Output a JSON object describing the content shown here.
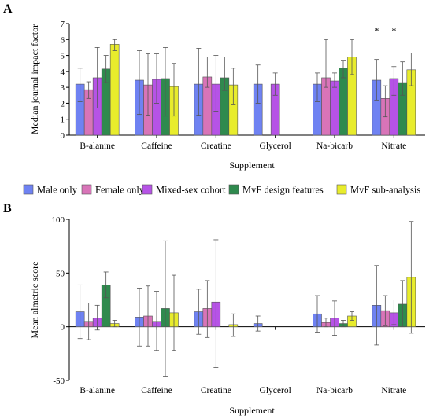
{
  "figure": {
    "panel_a_label": "A",
    "panel_b_label": "B",
    "legend": {
      "entries": [
        {
          "label": "Male only",
          "color": "#6f82f2"
        },
        {
          "label": "Female only",
          "color": "#d874b8"
        },
        {
          "label": "Mixed-sex cohort",
          "color": "#b653e6"
        },
        {
          "label": "MvF design features",
          "color": "#2f8a4e"
        },
        {
          "label": "MvF sub-analysis",
          "color": "#e8ec2c"
        }
      ]
    }
  },
  "chart_data": [
    {
      "type": "bar",
      "panel": "A",
      "xlabel": "Supplement",
      "ylabel": "Median journal impact factor",
      "ylim": [
        0,
        7
      ],
      "yticks": [
        "0",
        "1",
        "2",
        "3",
        "4",
        "5",
        "6",
        "7"
      ],
      "categories": [
        "B-alanine",
        "Caffeine",
        "Creatine",
        "Glycerol",
        "Na-bicarb",
        "Nitrate"
      ],
      "annotations": [
        "*",
        "*"
      ],
      "series": [
        {
          "name": "Male only",
          "values": [
            3.2,
            3.45,
            3.2,
            3.2,
            3.2,
            3.45
          ],
          "err_low": [
            2.1,
            1.3,
            1.25,
            2.0,
            2.1,
            2.2
          ],
          "err_high": [
            4.2,
            5.3,
            5.45,
            4.4,
            3.9,
            4.75
          ]
        },
        {
          "name": "Female only",
          "values": [
            2.85,
            3.15,
            3.65,
            null,
            3.6,
            2.3
          ],
          "err_low": [
            2.3,
            1.25,
            3.0,
            null,
            3.0,
            1.15
          ],
          "err_high": [
            3.35,
            5.1,
            4.9,
            null,
            6.0,
            3.1
          ]
        },
        {
          "name": "Mixed-sex cohort",
          "values": [
            3.6,
            3.5,
            3.2,
            3.2,
            3.4,
            3.55
          ],
          "err_low": [
            1.7,
            2.0,
            1.5,
            2.5,
            3.0,
            2.5
          ],
          "err_high": [
            5.5,
            5.1,
            5.0,
            3.9,
            3.9,
            4.3
          ]
        },
        {
          "name": "MvF design features",
          "values": [
            4.15,
            3.55,
            3.6,
            null,
            4.2,
            3.3
          ],
          "err_low": [
            3.3,
            1.2,
            2.8,
            null,
            3.6,
            2.5
          ],
          "err_high": [
            5.0,
            5.5,
            4.9,
            null,
            4.7,
            4.6
          ]
        },
        {
          "name": "MvF sub-analysis",
          "values": [
            5.7,
            3.05,
            3.15,
            null,
            4.9,
            4.1
          ],
          "err_low": [
            5.3,
            1.2,
            1.95,
            null,
            3.8,
            3.1
          ],
          "err_high": [
            6.0,
            4.5,
            4.2,
            null,
            6.0,
            5.15
          ]
        }
      ]
    },
    {
      "type": "bar",
      "panel": "B",
      "xlabel": "Supplement",
      "ylabel": "Mean almetric score",
      "ylim": [
        -50,
        100
      ],
      "yticks": [
        "-50",
        "0",
        "50",
        "100"
      ],
      "categories": [
        "B-alanine",
        "Caffeine",
        "Creatine",
        "Glycerol",
        "Na-bicarb",
        "Nitrate"
      ],
      "series": [
        {
          "name": "Male only",
          "values": [
            14,
            9,
            14,
            3,
            12,
            20
          ],
          "err_low": [
            -11,
            -18,
            -7,
            -4,
            -5,
            -17
          ],
          "err_high": [
            39,
            36,
            35,
            10,
            29,
            57
          ]
        },
        {
          "name": "Female only",
          "values": [
            5,
            10,
            17,
            null,
            4,
            15
          ],
          "err_low": [
            -12,
            -18,
            -10,
            null,
            0,
            1
          ],
          "err_high": [
            22,
            38,
            43,
            null,
            8,
            29
          ]
        },
        {
          "name": "Mixed-sex cohort",
          "values": [
            8,
            5,
            23,
            null,
            8,
            13
          ],
          "err_low": [
            -3,
            -22,
            -38,
            null,
            -8,
            2
          ],
          "err_high": [
            20,
            33,
            81,
            null,
            24,
            25
          ]
        },
        {
          "name": "MvF design features",
          "values": [
            39,
            17,
            null,
            null,
            3,
            21
          ],
          "err_low": [
            27,
            -46,
            null,
            null,
            0,
            0
          ],
          "err_high": [
            51,
            80,
            null,
            null,
            6,
            43
          ]
        },
        {
          "name": "MvF sub-analysis",
          "values": [
            3,
            13,
            2,
            null,
            10,
            46
          ],
          "err_low": [
            0,
            -22,
            -9,
            null,
            6,
            -6
          ],
          "err_high": [
            6,
            48,
            12,
            null,
            14,
            98
          ]
        }
      ]
    }
  ]
}
